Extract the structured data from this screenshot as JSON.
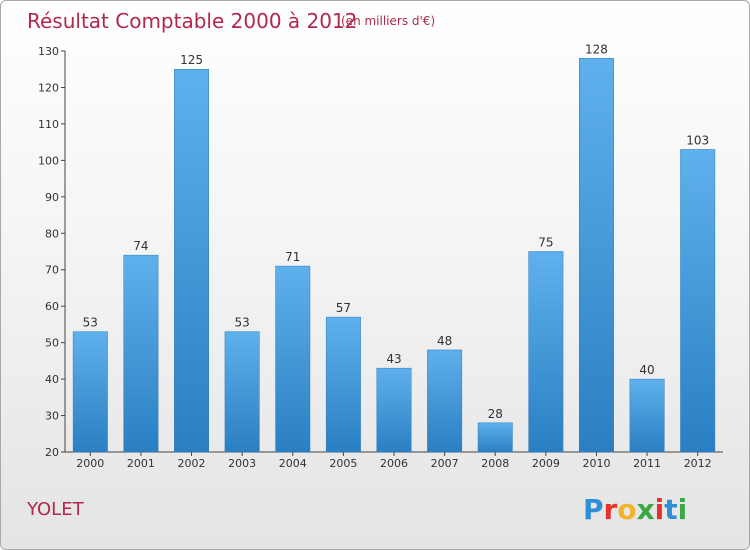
{
  "chart_data": {
    "type": "bar",
    "title": "Résultat Comptable 2000 à 2012",
    "subtitle": "(en milliers d'€)",
    "categories": [
      "2000",
      "2001",
      "2002",
      "2003",
      "2004",
      "2005",
      "2006",
      "2007",
      "2008",
      "2009",
      "2010",
      "2011",
      "2012"
    ],
    "values": [
      53,
      74,
      125,
      53,
      71,
      57,
      43,
      48,
      28,
      75,
      128,
      40,
      103
    ],
    "ylim": [
      20,
      130
    ],
    "yticks": [
      20,
      30,
      40,
      50,
      60,
      70,
      80,
      90,
      100,
      110,
      120,
      130
    ],
    "xlabel": "",
    "ylabel": "",
    "grid": false,
    "bar_color": "#3b93d8"
  },
  "footer": {
    "town": "YOLET",
    "brand": "Proxiti",
    "brand_letters": [
      "P",
      "r",
      "o",
      "x",
      "i",
      "t",
      "i"
    ],
    "brand_colors": [
      "#2f8fd6",
      "#e2342f",
      "#f2b32c",
      "#3aa845",
      "#e2342f",
      "#2f8fd6",
      "#3aa845"
    ]
  }
}
